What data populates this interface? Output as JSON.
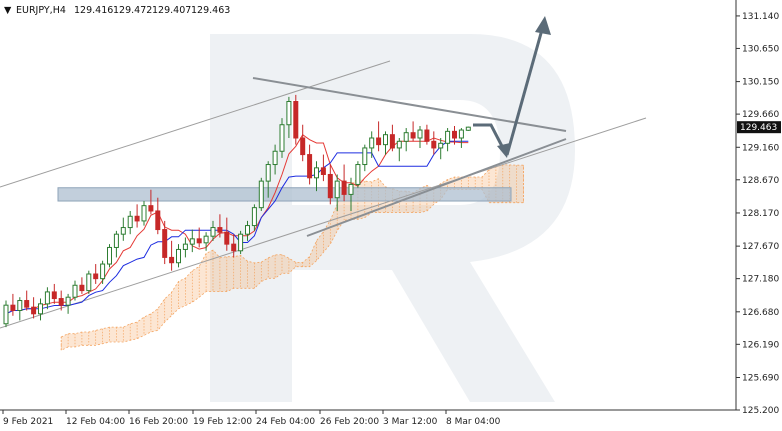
{
  "header": {
    "symbol": "EURJPY,H4",
    "open": "129.416",
    "high": "129.472",
    "low": "129.407",
    "close": "129.463"
  },
  "colors": {
    "bull": "#2e7d32",
    "bear": "#c62828",
    "tenkan": "#e53935",
    "kijun": "#1e2de0",
    "cloud": "#f4a460",
    "trend": "#9e9e9e",
    "arrow": "#5b6b78",
    "zone": "#aebfd0",
    "watermark": "#eef1f4"
  },
  "chart_data": {
    "type": "candlestick",
    "title": "EURJPY,H4",
    "y_ticks": [
      "131.140",
      "130.650",
      "130.150",
      "129.660",
      "129.160",
      "128.670",
      "128.170",
      "127.670",
      "127.180",
      "126.680",
      "126.190",
      "125.690",
      "125.200"
    ],
    "x_ticks": [
      "9 Feb 2021",
      "12 Feb 04:00",
      "16 Feb 20:00",
      "19 Feb 12:00",
      "24 Feb 04:00",
      "26 Feb 20:00",
      "3 Mar 12:00",
      "8 Mar 04:00"
    ],
    "ylim": [
      125.2,
      131.38
    ],
    "current_price": "129.463",
    "support_zone": [
      128.35,
      128.55
    ],
    "indicators": [
      "Ichimoku Tenkan-sen",
      "Ichimoku Kijun-sen",
      "Ichimoku Cloud"
    ],
    "candles": [
      [
        126.5,
        126.85,
        126.45,
        126.78
      ],
      [
        126.78,
        126.95,
        126.62,
        126.7
      ],
      [
        126.7,
        126.9,
        126.55,
        126.85
      ],
      [
        126.85,
        127.0,
        126.7,
        126.75
      ],
      [
        126.75,
        126.9,
        126.58,
        126.65
      ],
      [
        126.65,
        126.88,
        126.55,
        126.8
      ],
      [
        126.8,
        127.05,
        126.72,
        126.98
      ],
      [
        126.98,
        127.1,
        126.8,
        126.88
      ],
      [
        126.88,
        127.0,
        126.7,
        126.78
      ],
      [
        126.78,
        126.95,
        126.65,
        126.9
      ],
      [
        126.9,
        127.15,
        126.85,
        127.08
      ],
      [
        127.08,
        127.2,
        126.95,
        127.0
      ],
      [
        127.0,
        127.3,
        126.95,
        127.25
      ],
      [
        127.25,
        127.4,
        127.1,
        127.18
      ],
      [
        127.18,
        127.45,
        127.1,
        127.4
      ],
      [
        127.4,
        127.7,
        127.35,
        127.65
      ],
      [
        127.65,
        127.9,
        127.5,
        127.85
      ],
      [
        127.85,
        128.1,
        127.75,
        127.95
      ],
      [
        127.95,
        128.2,
        127.85,
        128.12
      ],
      [
        128.12,
        128.3,
        127.95,
        128.05
      ],
      [
        128.05,
        128.35,
        127.98,
        128.28
      ],
      [
        128.28,
        128.52,
        128.15,
        128.2
      ],
      [
        128.2,
        128.4,
        127.85,
        127.92
      ],
      [
        127.92,
        128.05,
        127.4,
        127.5
      ],
      [
        127.5,
        127.75,
        127.3,
        127.42
      ],
      [
        127.42,
        127.7,
        127.35,
        127.62
      ],
      [
        127.62,
        127.8,
        127.5,
        127.7
      ],
      [
        127.7,
        127.92,
        127.58,
        127.78
      ],
      [
        127.78,
        127.95,
        127.65,
        127.72
      ],
      [
        127.72,
        127.88,
        127.6,
        127.82
      ],
      [
        127.82,
        128.05,
        127.75,
        127.95
      ],
      [
        127.95,
        128.15,
        127.8,
        127.88
      ],
      [
        127.88,
        128.1,
        127.6,
        127.7
      ],
      [
        127.7,
        127.85,
        127.5,
        127.6
      ],
      [
        127.6,
        127.9,
        127.55,
        127.85
      ],
      [
        127.85,
        128.05,
        127.75,
        127.98
      ],
      [
        127.98,
        128.3,
        127.9,
        128.25
      ],
      [
        128.25,
        128.7,
        128.2,
        128.65
      ],
      [
        128.65,
        128.95,
        128.4,
        128.9
      ],
      [
        128.9,
        129.2,
        128.75,
        129.1
      ],
      [
        129.1,
        129.6,
        129.0,
        129.5
      ],
      [
        129.5,
        129.92,
        129.3,
        129.85
      ],
      [
        129.85,
        129.95,
        129.2,
        129.3
      ],
      [
        129.3,
        129.5,
        128.95,
        129.05
      ],
      [
        129.05,
        129.2,
        128.6,
        128.7
      ],
      [
        128.7,
        128.95,
        128.5,
        128.85
      ],
      [
        128.85,
        129.05,
        128.65,
        128.75
      ],
      [
        128.75,
        128.9,
        128.3,
        128.4
      ],
      [
        128.4,
        128.75,
        128.2,
        128.65
      ],
      [
        128.65,
        128.9,
        128.35,
        128.45
      ],
      [
        128.45,
        128.7,
        128.2,
        128.6
      ],
      [
        128.6,
        128.95,
        128.55,
        128.9
      ],
      [
        128.9,
        129.2,
        128.8,
        129.15
      ],
      [
        129.15,
        129.4,
        129.0,
        129.3
      ],
      [
        129.3,
        129.55,
        129.1,
        129.2
      ],
      [
        129.2,
        129.4,
        129.05,
        129.35
      ],
      [
        129.35,
        129.5,
        129.1,
        129.15
      ],
      [
        129.15,
        129.3,
        128.95,
        129.25
      ],
      [
        129.25,
        129.45,
        129.1,
        129.38
      ],
      [
        129.38,
        129.55,
        129.25,
        129.3
      ],
      [
        129.3,
        129.48,
        129.15,
        129.42
      ],
      [
        129.42,
        129.5,
        129.2,
        129.25
      ],
      [
        129.25,
        129.4,
        129.05,
        129.15
      ],
      [
        129.15,
        129.3,
        128.98,
        129.22
      ],
      [
        129.22,
        129.45,
        129.1,
        129.4
      ],
      [
        129.4,
        129.48,
        129.2,
        129.3
      ],
      [
        129.3,
        129.45,
        129.15,
        129.42
      ],
      [
        129.416,
        129.472,
        129.407,
        129.463
      ]
    ]
  }
}
